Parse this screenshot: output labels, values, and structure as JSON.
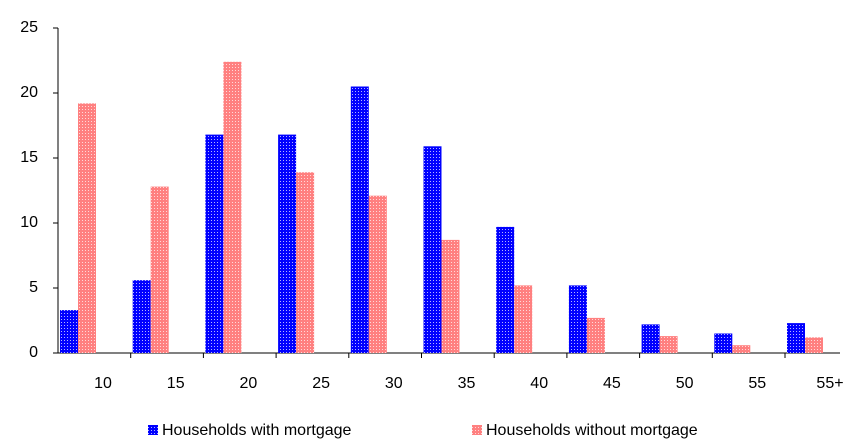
{
  "chart_data": {
    "type": "bar",
    "categories": [
      "10",
      "15",
      "20",
      "25",
      "30",
      "35",
      "40",
      "45",
      "50",
      "55",
      "55+"
    ],
    "series": [
      {
        "name": "Households with mortgage",
        "color": "#0000ff",
        "values": [
          3.3,
          5.6,
          16.8,
          16.8,
          20.5,
          15.9,
          9.7,
          5.2,
          2.2,
          1.5,
          2.3
        ]
      },
      {
        "name": "Households without mortgage",
        "color": "#ff8080",
        "values": [
          19.2,
          12.8,
          22.4,
          13.9,
          12.1,
          8.7,
          5.2,
          2.7,
          1.3,
          0.6,
          1.2
        ]
      }
    ],
    "ylim": [
      0,
      25
    ],
    "yticks": [
      0,
      5,
      10,
      15,
      20,
      25
    ],
    "grid": false
  }
}
